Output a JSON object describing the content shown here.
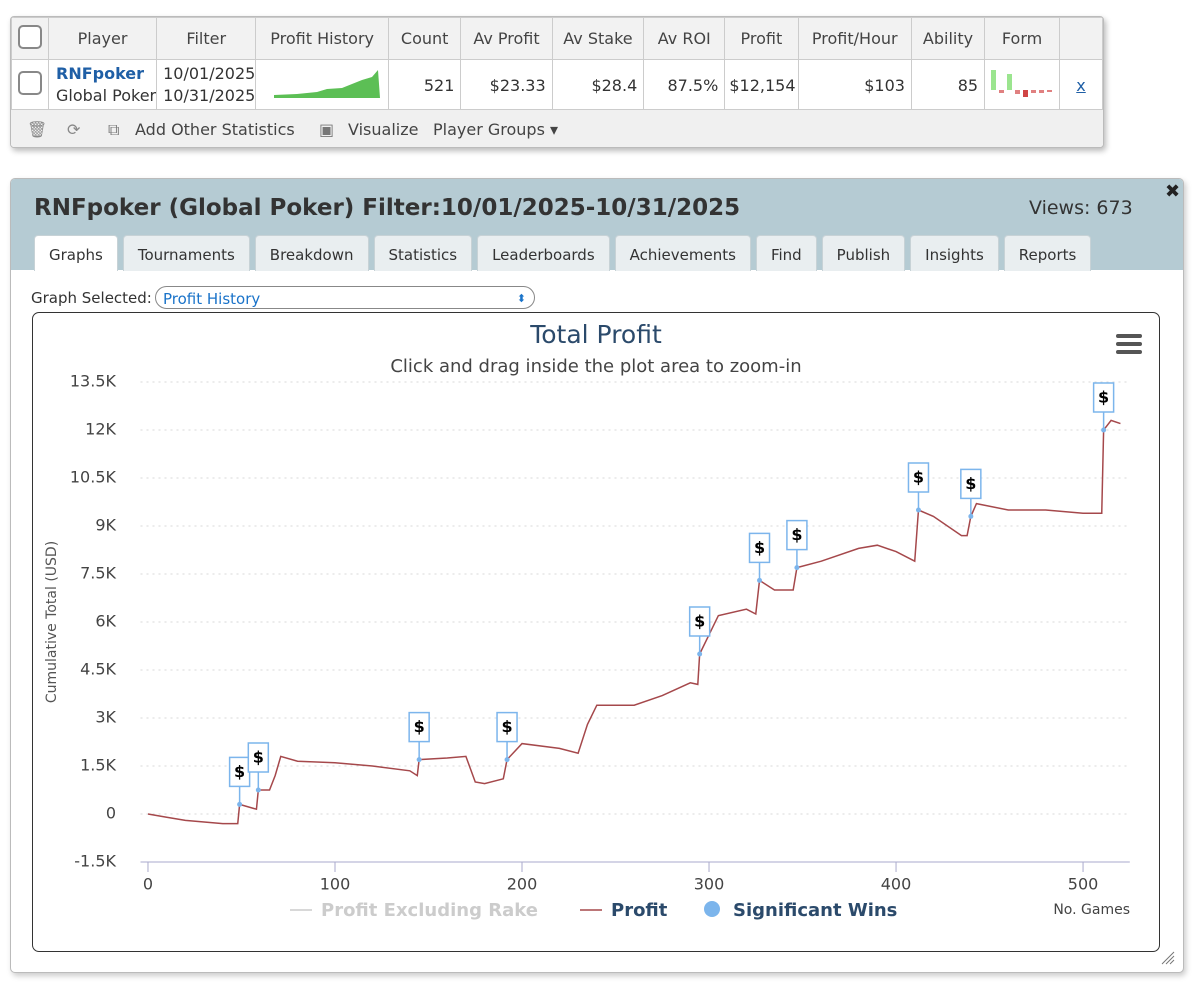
{
  "table": {
    "columns": [
      "Player",
      "Filter",
      "Profit History",
      "Count",
      "Av Profit",
      "Av Stake",
      "Av ROI",
      "Profit",
      "Profit/Hour",
      "Ability",
      "Form"
    ],
    "row": {
      "player": "RNFpoker",
      "site": "Global Poker",
      "filter_from": "10/01/2025",
      "filter_to": "10/31/2025",
      "count": 521,
      "av_profit": "$23.33",
      "av_stake": "$28.4",
      "av_roi": "87.5%",
      "profit": "$12,154",
      "profit_hour": "$103",
      "ability": 85,
      "remove": "x"
    },
    "toolbar": [
      "Add Other Statistics",
      "Visualize",
      "Player Groups"
    ]
  },
  "panel": {
    "title": "RNFpoker (Global Poker) Filter:10/01/2025-10/31/2025",
    "views": "Views: 673",
    "tabs": [
      "Graphs",
      "Tournaments",
      "Breakdown",
      "Statistics",
      "Leaderboards",
      "Achievements",
      "Find",
      "Publish",
      "Insights",
      "Reports"
    ],
    "graph_selected_label": "Graph Selected:",
    "graph_selected": "Profit History"
  },
  "chart_data": {
    "type": "line",
    "title": "Total Profit",
    "subtitle": "Click and drag inside the plot area to zoom-in",
    "y_label": "Cumulative Total (USD)",
    "x_label": "No. Games",
    "marker_label": "$",
    "grid": true,
    "xlim": [
      -4,
      525
    ],
    "xticks": [
      0,
      100,
      200,
      300,
      400,
      500
    ],
    "ylim": [
      -1500,
      13800
    ],
    "yticks": [
      {
        "value": -1500,
        "label": "-1.5K"
      },
      0,
      {
        "value": 1500,
        "label": "1.5K"
      },
      {
        "value": 3000,
        "label": "3K"
      },
      {
        "value": 4500,
        "label": "4.5K"
      },
      {
        "value": 6000,
        "label": "6K"
      },
      {
        "value": 7500,
        "label": "7.5K"
      },
      {
        "value": 9000,
        "label": "9K"
      },
      {
        "value": 10500,
        "label": "10.5K"
      },
      {
        "value": 12000,
        "label": "12K"
      },
      {
        "value": 13500,
        "label": "13.5K"
      }
    ],
    "series": [
      {
        "name": "Profit Excluding Rake",
        "color": "#cccccc",
        "visible": false
      },
      {
        "name": "Profit",
        "color": "#a5484b",
        "x": [
          0,
          10,
          20,
          30,
          40,
          48,
          49,
          55,
          58,
          59,
          65,
          68,
          71,
          80,
          100,
          120,
          140,
          144,
          145,
          160,
          170,
          175,
          180,
          190,
          192,
          200,
          220,
          230,
          235,
          240,
          260,
          275,
          290,
          294,
          295,
          305,
          320,
          325,
          327,
          335,
          345,
          347,
          360,
          380,
          390,
          400,
          410,
          412,
          420,
          435,
          438,
          440,
          443,
          460,
          480,
          500,
          510,
          511,
          515,
          520
        ],
        "values": [
          0,
          -100,
          -200,
          -250,
          -300,
          -300,
          300,
          200,
          150,
          750,
          750,
          1200,
          1800,
          1650,
          1600,
          1500,
          1350,
          1200,
          1700,
          1750,
          1800,
          1000,
          950,
          1100,
          1700,
          2200,
          2050,
          1900,
          2800,
          3400,
          3400,
          3700,
          4100,
          4050,
          5000,
          6200,
          6400,
          6250,
          7300,
          7000,
          7000,
          7700,
          7900,
          8300,
          8400,
          8200,
          7900,
          9500,
          9300,
          8700,
          8700,
          9300,
          9700,
          9500,
          9500,
          9400,
          9400,
          12000,
          12300,
          12200
        ]
      },
      {
        "name": "Significant Wins",
        "color": "#7cb5ec",
        "x": [
          49,
          59,
          145,
          192,
          295,
          327,
          347,
          412,
          440,
          511
        ],
        "values": [
          300,
          750,
          1700,
          1700,
          5000,
          7300,
          7700,
          9500,
          9300,
          12000
        ]
      }
    ]
  }
}
